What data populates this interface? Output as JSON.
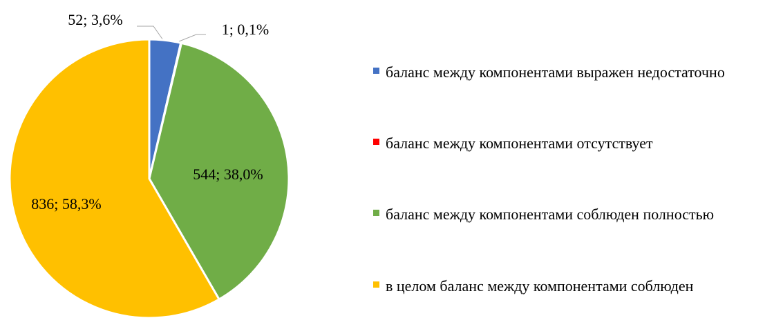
{
  "chart_data": {
    "type": "pie",
    "categories": [
      "баланс между компонентами выражен недостаточно",
      "баланс между компонентами отсутствует",
      "баланс между компонентами соблюден полностью",
      "в целом баланс между компонентами соблюден"
    ],
    "values": [
      52,
      1,
      544,
      836
    ],
    "value_labels": [
      "52; 3,6%",
      "1; 0,1%",
      "544; 38,0%",
      "836; 58,3%"
    ],
    "colors": [
      "#4472c4",
      "#ff0000",
      "#70ad47",
      "#ffc000"
    ],
    "legend": "right"
  }
}
